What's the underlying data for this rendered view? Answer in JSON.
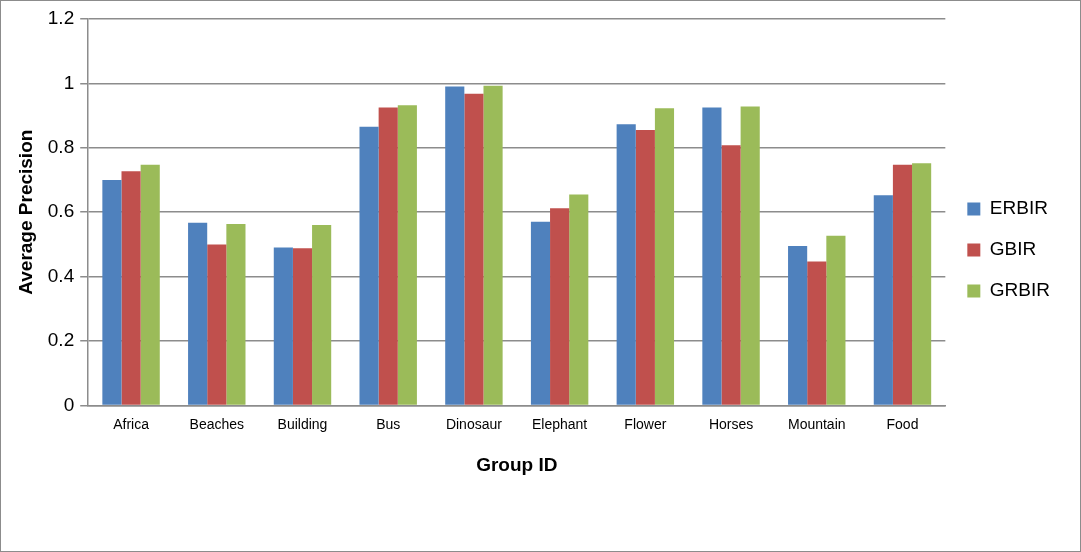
{
  "chart_data": {
    "type": "bar",
    "xlabel": "Group ID",
    "ylabel": "Average Precision",
    "categories": [
      "Africa",
      "Beaches",
      "Building",
      "Bus",
      "Dinosaur",
      "Elephant",
      "Flower",
      "Horses",
      "Mountain",
      "Food"
    ],
    "series": [
      {
        "name": "ERBIR",
        "color": "#4f81bd",
        "values": [
          0.7,
          0.567,
          0.49,
          0.865,
          0.99,
          0.57,
          0.873,
          0.925,
          0.495,
          0.653
        ]
      },
      {
        "name": "GBIR",
        "color": "#c0504d",
        "values": [
          0.727,
          0.5,
          0.488,
          0.925,
          0.968,
          0.612,
          0.855,
          0.808,
          0.447,
          0.747
        ]
      },
      {
        "name": "GRBIR",
        "color": "#9bbb59",
        "values": [
          0.747,
          0.563,
          0.56,
          0.932,
          0.993,
          0.655,
          0.923,
          0.928,
          0.527,
          0.752
        ]
      }
    ],
    "ylim": [
      0,
      1.2
    ],
    "yticks": [
      0,
      0.2,
      0.4,
      0.6,
      0.8,
      1,
      1.2
    ],
    "grid": "y",
    "legend": "right"
  }
}
